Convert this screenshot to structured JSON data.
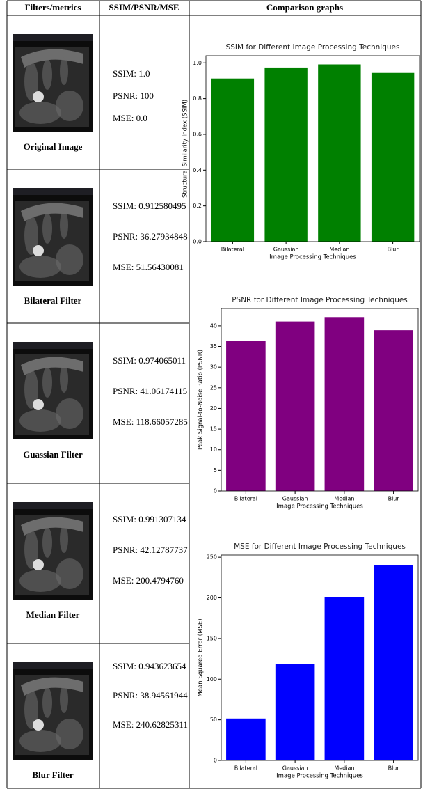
{
  "table": {
    "header": [
      "Filters/metrics",
      "SSIM/PSNR/MSE",
      "Comparison graphs"
    ],
    "rows": [
      {
        "caption": "Original Image",
        "metrics": [
          "SSIM: 1.0",
          "PSNR: 100",
          "MSE: 0.0"
        ]
      },
      {
        "caption": "Bilateral  Filter",
        "metrics": [
          "SSIM: 0.912580495",
          "PSNR: 36.27934848",
          "MSE:  51.56430081"
        ]
      },
      {
        "caption": "Guassian  Filter",
        "metrics": [
          "SSIM: 0.974065011",
          "PSNR: 41.06174115",
          "MSE: 118.66057285"
        ]
      },
      {
        "caption": "Median  Filter",
        "metrics": [
          "SSIM: 0.991307134",
          "PSNR: 42.12787737",
          "MSE: 200.4794760"
        ]
      },
      {
        "caption": "Blur  Filter",
        "metrics": [
          "SSIM: 0.943623654",
          "PSNR: 38.94561944",
          "MSE: 240.62825311"
        ]
      }
    ]
  },
  "chart_data": [
    {
      "type": "bar",
      "title": "SSIM for Different Image Processing Techniques",
      "xlabel": "Image Processing Techniques",
      "ylabel": "Structural Similarity Index (SSIM)",
      "categories": [
        "Bilateral",
        "Gaussian",
        "Median",
        "Blur"
      ],
      "values": [
        0.912580495,
        0.974065011,
        0.991307134,
        0.943623654
      ],
      "color": "#008000",
      "ylim": [
        0,
        1.04
      ],
      "yticks": [
        {
          "value": 0,
          "label": "0.0"
        },
        0.2,
        0.4,
        0.6,
        0.8,
        {
          "value": 1,
          "label": "1.0"
        }
      ]
    },
    {
      "type": "bar",
      "title": "PSNR for Different Image Processing Techniques",
      "xlabel": "Image Processing Techniques",
      "ylabel": "Peak Signal-to-Noise Ratio (PSNR)",
      "categories": [
        "Bilateral",
        "Gaussian",
        "Median",
        "Blur"
      ],
      "values": [
        36.27934848,
        41.06174115,
        42.12787737,
        38.94561944
      ],
      "color": "#800080",
      "ylim": [
        0,
        44.2
      ],
      "yticks": [
        0,
        5,
        10,
        15,
        20,
        25,
        30,
        35,
        40
      ]
    },
    {
      "type": "bar",
      "title": "MSE for Different Image Processing Techniques",
      "xlabel": "Image Processing Techniques",
      "ylabel": "Mean Squared Error (MSE)",
      "categories": [
        "Bilateral",
        "Gaussian",
        "Median",
        "Blur"
      ],
      "values": [
        51.56430081,
        118.66057285,
        200.479476,
        240.62825311
      ],
      "color": "#0000ff",
      "ylim": [
        0,
        252.7
      ],
      "yticks": [
        0,
        50,
        100,
        150,
        200,
        250
      ]
    }
  ]
}
